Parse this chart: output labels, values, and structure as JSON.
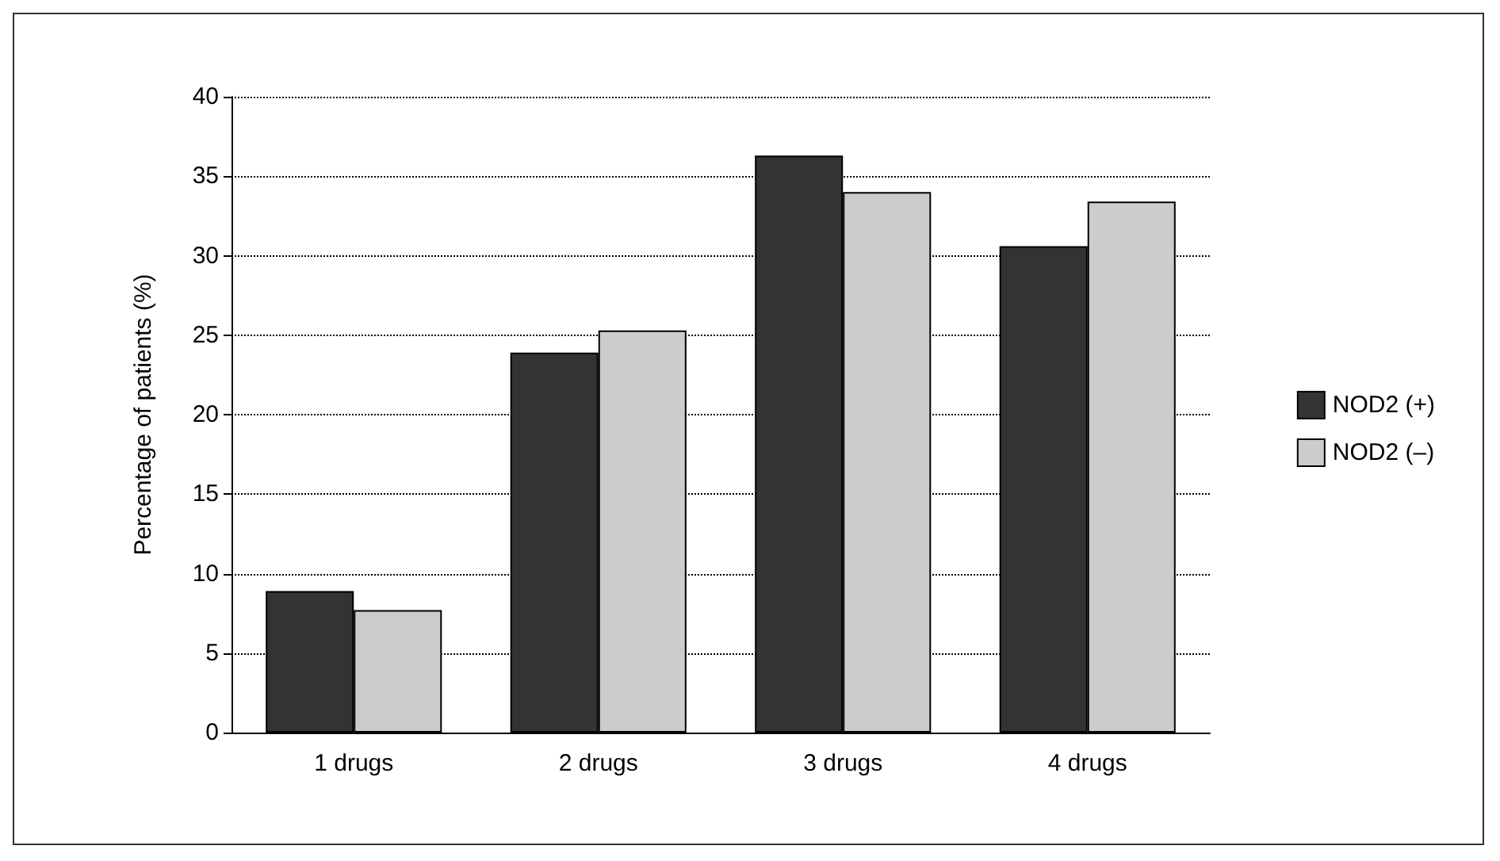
{
  "chart_data": {
    "type": "bar",
    "ylabel": "Percentage of patients (%)",
    "categories": [
      "1 drugs",
      "2 drugs",
      "3 drugs",
      "4 drugs"
    ],
    "series": [
      {
        "name": "NOD2 (+)",
        "color": "#333333",
        "values": [
          8.9,
          23.9,
          36.3,
          30.6
        ]
      },
      {
        "name": "NOD2 (–)",
        "color": "#cccccc",
        "values": [
          7.7,
          25.3,
          34.0,
          33.4
        ]
      }
    ],
    "ylim": [
      0,
      40
    ],
    "yticks": [
      0,
      5,
      10,
      15,
      20,
      25,
      30,
      35,
      40
    ],
    "grid": "y",
    "legend": "right"
  }
}
